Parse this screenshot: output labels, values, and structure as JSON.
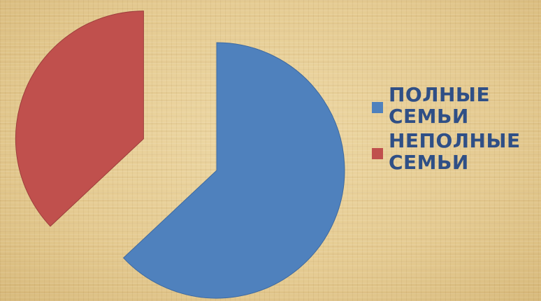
{
  "chart_data": {
    "type": "pie",
    "exploded": true,
    "categories": [
      "ПОЛНЫЕ СЕМЬИ",
      "НЕПОЛНЫЕ СЕМЬИ"
    ],
    "values": [
      63,
      37
    ],
    "colors": [
      "#4f81bd",
      "#c0504d"
    ],
    "legend_position": "right"
  },
  "legend": {
    "items": [
      {
        "line1": "ПОЛНЫЕ",
        "line2": "СЕМЬИ",
        "color": "#4f81bd"
      },
      {
        "line1": "НЕПОЛНЫЕ",
        "line2": "СЕМЬИ",
        "color": "#c0504d"
      }
    ]
  }
}
